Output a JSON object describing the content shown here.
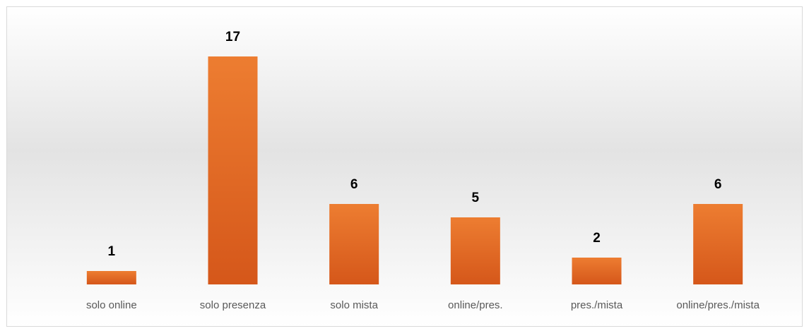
{
  "chart_data": {
    "type": "bar",
    "categories": [
      "solo online",
      "solo presenza",
      "solo mista",
      "online/pres.",
      "pres./mista",
      "online/pres./mista"
    ],
    "values": [
      1,
      17,
      6,
      5,
      2,
      6
    ],
    "color": "#ed7d31",
    "ylim": [
      0,
      18
    ]
  }
}
